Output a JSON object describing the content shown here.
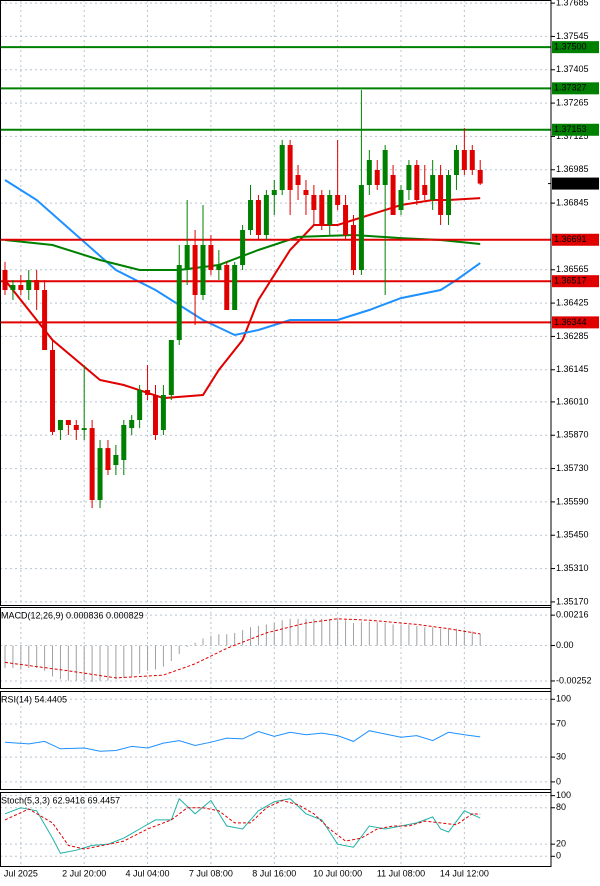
{
  "chart_data": [
    {
      "type": "candlestick",
      "categories": [
        null,
        null,
        "Jul 2025",
        null,
        null,
        null,
        null,
        null,
        null,
        null,
        "2 Jul 20:00",
        null,
        null,
        null,
        null,
        null,
        null,
        null,
        "4 Jul 04:00",
        null,
        null,
        null,
        null,
        null,
        null,
        null,
        "7 Jul 08:00",
        null,
        null,
        null,
        null,
        null,
        null,
        null,
        "8 Jul 16:00",
        null,
        null,
        null,
        null,
        null,
        null,
        null,
        "10 Jul 00:00",
        null,
        null,
        null,
        null,
        null,
        null,
        null,
        "11 Jul 08:00",
        null,
        null,
        null,
        null,
        null,
        null,
        null,
        "14 Jul 12:00",
        null,
        null
      ],
      "open": [
        1.36564,
        1.3648,
        1.36501,
        1.3648,
        1.36522,
        1.3648,
        1.36228,
        1.35892,
        1.35934,
        1.35913,
        1.35892,
        1.359,
        1.35598,
        1.35816,
        1.35745,
        1.35766,
        1.359,
        1.35934,
        1.3606,
        1.36039,
        1.35892,
        1.36039,
        1.3627,
        1.36564,
        1.36669,
        1.36459,
        1.36669,
        1.36564,
        1.36585,
        1.36396,
        1.36585,
        1.36732,
        1.36858,
        1.36711,
        1.36879,
        1.369,
        1.37089,
        1.36963,
        1.369,
        1.36879,
        1.36879,
        1.36753,
        1.36879,
        1.36837,
        1.36753,
        1.36564,
        1.36921,
        1.36984,
        1.36921,
        1.36963,
        1.36816,
        1.369,
        1.37005,
        1.36921,
        1.36858,
        1.36963,
        1.36795,
        1.36963,
        1.37068,
        1.37068,
        1.36984
      ],
      "high": [
        1.36598,
        1.36522,
        1.36543,
        1.36564,
        1.36564,
        1.36522,
        1.3627,
        1.35934,
        1.35934,
        1.35934,
        1.36165,
        1.35934,
        1.3585,
        1.3585,
        1.35829,
        1.35934,
        1.35955,
        1.36081,
        1.36165,
        1.36081,
        1.36081,
        1.3627,
        1.36669,
        1.36858,
        1.36732,
        1.36837,
        1.36711,
        1.36648,
        1.36598,
        1.36598,
        1.36753,
        1.36921,
        1.36879,
        1.369,
        1.36942,
        1.3711,
        1.3711,
        1.37005,
        1.36942,
        1.36921,
        1.369,
        1.369,
        1.3711,
        1.36879,
        1.36795,
        1.3732,
        1.37068,
        1.37026,
        1.37089,
        1.37005,
        1.36921,
        1.37026,
        1.37026,
        1.37005,
        1.37026,
        1.37005,
        1.36984,
        1.37089,
        1.3716,
        1.37089,
        1.37026
      ],
      "low": [
        1.36459,
        1.36438,
        1.36459,
        1.36438,
        1.36396,
        1.36228,
        1.35871,
        1.3585,
        1.35871,
        1.3585,
        1.3585,
        1.35564,
        1.35564,
        1.35703,
        1.35703,
        1.35703,
        1.35871,
        1.359,
        1.36018,
        1.3585,
        1.35871,
        1.36018,
        1.36249,
        1.36501,
        1.36333,
        1.36438,
        1.36543,
        1.36522,
        1.36396,
        1.36396,
        1.36564,
        1.36711,
        1.3669,
        1.3669,
        1.36795,
        1.36879,
        1.36795,
        1.36858,
        1.36795,
        1.36753,
        1.36732,
        1.36711,
        1.36816,
        1.3669,
        1.36543,
        1.36543,
        1.36879,
        1.369,
        1.36459,
        1.36795,
        1.36795,
        1.36858,
        1.36837,
        1.36858,
        1.36816,
        1.36753,
        1.36753,
        1.369,
        1.36963,
        1.36963,
        1.36921
      ],
      "close": [
        1.3648,
        1.36501,
        1.3648,
        1.36522,
        1.3648,
        1.36228,
        1.35884,
        1.35934,
        1.35913,
        1.35892,
        1.359,
        1.35598,
        1.35816,
        1.35724,
        1.35787,
        1.35913,
        1.35934,
        1.3606,
        1.36039,
        1.35871,
        1.36039,
        1.3627,
        1.36585,
        1.36669,
        1.36459,
        1.36669,
        1.36564,
        1.36585,
        1.36396,
        1.36585,
        1.36732,
        1.36858,
        1.36711,
        1.36879,
        1.369,
        1.37089,
        1.369,
        1.36921,
        1.36879,
        1.36816,
        1.36753,
        1.36879,
        1.36837,
        1.36711,
        1.36564,
        1.36921,
        1.37026,
        1.36921,
        1.37068,
        1.36795,
        1.369,
        1.37005,
        1.36858,
        1.36879,
        1.36963,
        1.36795,
        1.36963,
        1.37068,
        1.36984,
        1.36984,
        1.36927
      ],
      "up_color": "#008000",
      "down_color": "#e00000",
      "lines": [
        {
          "color": "#e00000",
          "x": [
            0,
            6,
            12,
            15,
            20,
            25,
            27,
            30,
            32,
            36,
            39,
            42,
            46,
            50,
            54,
            56,
            60
          ],
          "values": [
            1.36522,
            1.3627,
            1.36102,
            1.36081,
            1.36026,
            1.36039,
            1.36144,
            1.3627,
            1.36438,
            1.36648,
            1.36753,
            1.36753,
            1.36795,
            1.36837,
            1.36858,
            1.36858,
            1.36866
          ]
        },
        {
          "color": "#1e90ff",
          "x": [
            0,
            4,
            9,
            14,
            19,
            25,
            29,
            32,
            36,
            42,
            46,
            50,
            55,
            57,
            60
          ],
          "values": [
            1.36942,
            1.36858,
            1.36711,
            1.36564,
            1.3648,
            1.36354,
            1.36291,
            1.36312,
            1.36354,
            1.36354,
            1.36396,
            1.36446,
            1.3648,
            1.36522,
            1.36593
          ]
        },
        {
          "color": "#008000",
          "x": [
            0,
            6,
            12,
            17,
            22,
            27,
            32,
            37,
            44,
            50,
            55,
            60
          ],
          "values": [
            1.3669,
            1.36669,
            1.36606,
            1.36564,
            1.36564,
            1.36585,
            1.36648,
            1.36703,
            1.36711,
            1.36698,
            1.3669,
            1.36673
          ]
        }
      ],
      "levels": [
        {
          "value": 1.375,
          "label": "1.37500",
          "color": "#008000"
        },
        {
          "value": 1.37327,
          "label": "1.37327",
          "color": "#008000"
        },
        {
          "value": 1.37153,
          "label": "1.37153",
          "color": "#008000"
        },
        {
          "value": 1.36691,
          "label": "1.36691",
          "color": "#e00000"
        },
        {
          "value": 1.36517,
          "label": "1.36517",
          "color": "#e00000"
        },
        {
          "value": 1.36344,
          "label": "1.36344",
          "color": "#e00000"
        }
      ],
      "last_price": {
        "value": 1.36927,
        "label": "1.36927",
        "color": "#000000"
      },
      "ylim": [
        1.35157,
        1.37698
      ],
      "yticks": [
        1.37685,
        1.37545,
        1.37405,
        1.37265,
        1.37125,
        1.36985,
        1.36845,
        1.36565,
        1.36425,
        1.36285,
        1.36145,
        {
          "value": 1.3601,
          "label": "1.36010"
        },
        {
          "value": 1.3587,
          "label": "1.35870"
        },
        {
          "value": 1.3573,
          "label": "1.35730"
        },
        {
          "value": 1.3559,
          "label": "1.35590"
        },
        {
          "value": 1.3545,
          "label": "1.35450"
        },
        {
          "value": 1.3531,
          "label": "1.35310"
        },
        {
          "value": 1.3517,
          "label": "1.35170"
        }
      ],
      "grid": true
    },
    {
      "type": "macd",
      "title": "MACD(12,26,9) 0.000836 0.000829",
      "histogram": {
        "color": "#a0a0a0",
        "values": [
          -0.0016,
          -0.0016,
          -0.0017,
          -0.0016,
          -0.0016,
          -0.0018,
          -0.0022,
          -0.0024,
          -0.0025,
          -0.0025,
          -0.0025,
          -0.0026,
          -0.0025,
          -0.0025,
          -0.0024,
          -0.0023,
          -0.0022,
          -0.002,
          -0.0018,
          -0.0017,
          -0.0015,
          -0.0011,
          -0.0006,
          -0.0001,
          0.0002,
          0.0005,
          0.0007,
          0.0008,
          0.0008,
          0.0009,
          0.0011,
          0.0013,
          0.0014,
          0.0015,
          0.0016,
          0.0018,
          0.0019,
          0.0019,
          0.0019,
          0.0019,
          0.0019,
          0.0019,
          0.0019,
          0.0018,
          0.0016,
          0.0017,
          0.0017,
          0.0017,
          0.0016,
          0.0015,
          0.0015,
          0.0015,
          0.0014,
          0.0013,
          0.0013,
          0.0012,
          0.0012,
          0.0012,
          0.0011,
          0.001,
          0.000836
        ]
      },
      "lines": [
        {
          "color": "#e00000",
          "dashed": true,
          "x": [
            0,
            8,
            14,
            20,
            24,
            28,
            33,
            38,
            42,
            46,
            52,
            56,
            60
          ],
          "values": [
            -0.0012,
            -0.0018,
            -0.0023,
            -0.0021,
            -0.0013,
            -0.0002,
            0.0009,
            0.0016,
            0.0019,
            0.0018,
            0.0015,
            0.0012,
            0.000829
          ]
        }
      ],
      "ylim": [
        -0.00302,
        0.00274
      ],
      "yticks": [
        0.00216,
        {
          "value": 0,
          "label": "0.00"
        },
        -0.00252
      ],
      "grid": true
    },
    {
      "type": "line",
      "title": "RSI(14) 54.4405",
      "lines": [
        {
          "color": "#1e90ff",
          "x": [
            0,
            3,
            5,
            7,
            10,
            12,
            14,
            16,
            18,
            20,
            22,
            24,
            26,
            28,
            30,
            32,
            34,
            36,
            38,
            40,
            42,
            44,
            46,
            48,
            50,
            52,
            54,
            56,
            58,
            60
          ],
          "values": [
            48,
            46,
            49,
            40,
            41,
            37,
            38,
            43,
            41,
            47,
            50,
            44,
            48,
            53,
            52,
            61,
            55,
            60,
            57,
            59,
            56,
            49,
            62,
            58,
            54,
            56,
            50,
            60,
            57,
            54.4405
          ]
        }
      ],
      "ylim": [
        -8.6,
        110
      ],
      "yticks": [
        100,
        70,
        30,
        0
      ],
      "grid": true
    },
    {
      "type": "line",
      "title": "Stoch(5,3,3) 62.9416 69.4457",
      "lines": [
        {
          "color": "#20b2aa",
          "x": [
            0,
            2,
            4,
            6,
            7,
            9,
            11,
            13,
            15,
            17,
            19,
            21,
            22,
            24,
            26,
            28,
            30,
            32,
            34,
            36,
            38,
            40,
            42,
            44,
            46,
            48,
            50,
            52,
            54,
            55,
            56,
            58,
            60
          ],
          "values": [
            70,
            80,
            75,
            30,
            5,
            10,
            18,
            20,
            30,
            45,
            60,
            60,
            95,
            70,
            92,
            50,
            45,
            75,
            90,
            95,
            70,
            60,
            20,
            15,
            50,
            45,
            50,
            55,
            65,
            45,
            40,
            75,
            62.9416
          ]
        },
        {
          "color": "#e00000",
          "dashed": true,
          "x": [
            0,
            3,
            6,
            8,
            10,
            12,
            15,
            18,
            21,
            23,
            25,
            27,
            29,
            31,
            33,
            35,
            37,
            39,
            41,
            43,
            45,
            47,
            49,
            51,
            53,
            55,
            57,
            59,
            60
          ],
          "values": [
            60,
            78,
            55,
            18,
            12,
            17,
            25,
            45,
            60,
            80,
            80,
            75,
            55,
            55,
            80,
            92,
            85,
            70,
            45,
            25,
            30,
            45,
            50,
            50,
            58,
            55,
            52,
            70,
            69.4457
          ]
        }
      ],
      "ylim": [
        -16,
        106
      ],
      "yticks": [
        100,
        80,
        20,
        0
      ],
      "grid": true
    }
  ]
}
